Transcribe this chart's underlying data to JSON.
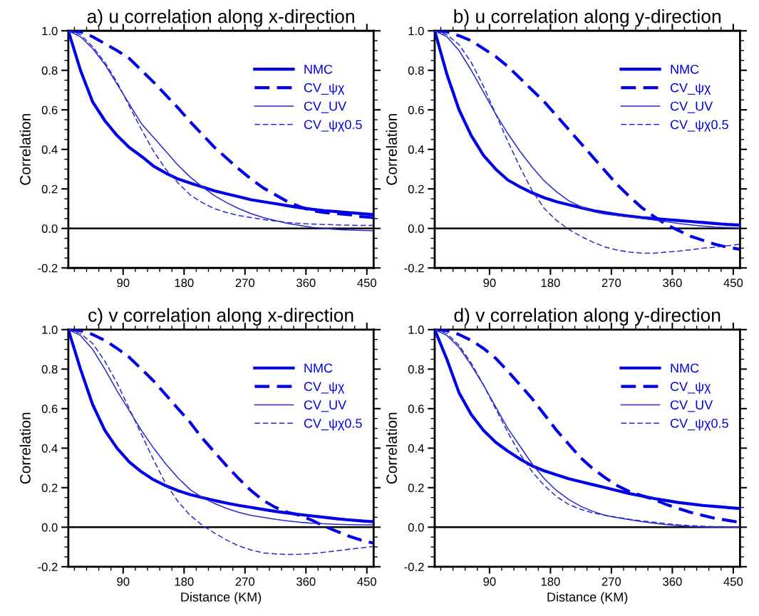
{
  "chart_data": [
    {
      "type": "line",
      "title": "a) u correlation along x-direction",
      "ylabel": "Correlation",
      "x": [
        9,
        27,
        45,
        63,
        81,
        99,
        117,
        135,
        153,
        171,
        189,
        207,
        225,
        243,
        261,
        279,
        297,
        315,
        333,
        351,
        369,
        387,
        405,
        423,
        441,
        459
      ],
      "xlim": [
        9,
        460
      ],
      "xticks": [
        90,
        180,
        270,
        360,
        450
      ],
      "ylim": [
        -0.2,
        1.0
      ],
      "yticks": [
        {
          "value": -0.2,
          "label": "-0.2"
        },
        {
          "value": 0,
          "label": "0.0"
        },
        0.2,
        0.4,
        0.6,
        0.8,
        {
          "value": 1,
          "label": "1.0"
        }
      ],
      "legend": "top right",
      "grid": false,
      "ref_lines": [
        {
          "axis": "y",
          "value": 0,
          "color": "#000000",
          "line_style": "solid"
        }
      ],
      "series": [
        {
          "name": "NMC",
          "color": "#0000e6",
          "line_style": "solid",
          "values": [
            1.0,
            0.8,
            0.64,
            0.545,
            0.47,
            0.41,
            0.365,
            0.315,
            0.28,
            0.25,
            0.23,
            0.21,
            0.19,
            0.175,
            0.16,
            0.145,
            0.135,
            0.125,
            0.115,
            0.105,
            0.097,
            0.09,
            0.085,
            0.08,
            0.075,
            0.07
          ]
        },
        {
          "name": "CV_ψχ",
          "color": "#0000e6",
          "line_style": "dashed",
          "values": [
            1.0,
            0.995,
            0.97,
            0.935,
            0.9,
            0.86,
            0.8,
            0.74,
            0.675,
            0.61,
            0.54,
            0.475,
            0.41,
            0.355,
            0.3,
            0.25,
            0.205,
            0.17,
            0.135,
            0.11,
            0.09,
            0.08,
            0.075,
            0.07,
            0.06,
            0.055
          ]
        },
        {
          "name": "CV_UV",
          "color": "#2a2ad0",
          "line_style": "solid",
          "values": [
            1.0,
            0.97,
            0.91,
            0.83,
            0.73,
            0.63,
            0.53,
            0.46,
            0.39,
            0.32,
            0.26,
            0.21,
            0.165,
            0.13,
            0.1,
            0.075,
            0.055,
            0.04,
            0.025,
            0.015,
            0.005,
            0.0,
            -0.005,
            -0.008,
            -0.01,
            -0.012
          ]
        },
        {
          "name": "CV_ψχ0.5",
          "color": "#2a2ad0",
          "line_style": "dashed",
          "values": [
            1.0,
            0.98,
            0.92,
            0.84,
            0.74,
            0.62,
            0.5,
            0.39,
            0.3,
            0.23,
            0.17,
            0.13,
            0.1,
            0.08,
            0.065,
            0.055,
            0.045,
            0.037,
            0.03,
            0.025,
            0.022,
            0.02,
            0.018,
            0.016,
            0.015,
            0.015
          ]
        }
      ]
    },
    {
      "type": "line",
      "title": "b) u correlation along y-direction",
      "ylabel": "Correlation",
      "x": [
        9,
        27,
        45,
        63,
        81,
        99,
        117,
        135,
        153,
        171,
        189,
        207,
        225,
        243,
        261,
        279,
        297,
        315,
        333,
        351,
        369,
        387,
        405,
        423,
        441,
        459
      ],
      "xlim": [
        9,
        460
      ],
      "xticks": [
        90,
        180,
        270,
        360,
        450
      ],
      "ylim": [
        -0.2,
        1.0
      ],
      "yticks": [
        {
          "value": -0.2,
          "label": "-0.2"
        },
        {
          "value": 0,
          "label": "0.0"
        },
        0.2,
        0.4,
        0.6,
        0.8,
        {
          "value": 1,
          "label": "1.0"
        }
      ],
      "legend": "top right",
      "grid": false,
      "ref_lines": [
        {
          "axis": "y",
          "value": 0,
          "color": "#000000",
          "line_style": "solid"
        }
      ],
      "series": [
        {
          "name": "NMC",
          "color": "#0000e6",
          "line_style": "solid",
          "values": [
            1.0,
            0.78,
            0.6,
            0.47,
            0.37,
            0.3,
            0.245,
            0.21,
            0.18,
            0.155,
            0.135,
            0.12,
            0.105,
            0.09,
            0.08,
            0.07,
            0.062,
            0.055,
            0.05,
            0.045,
            0.04,
            0.035,
            0.03,
            0.025,
            0.02,
            0.017
          ]
        },
        {
          "name": "CV_ψχ",
          "color": "#0000e6",
          "line_style": "dashed",
          "values": [
            1.0,
            0.995,
            0.975,
            0.95,
            0.91,
            0.87,
            0.82,
            0.76,
            0.7,
            0.64,
            0.57,
            0.5,
            0.43,
            0.36,
            0.29,
            0.22,
            0.16,
            0.105,
            0.06,
            0.02,
            -0.01,
            -0.04,
            -0.06,
            -0.08,
            -0.095,
            -0.105
          ]
        },
        {
          "name": "CV_UV",
          "color": "#2a2ad0",
          "line_style": "solid",
          "values": [
            1.0,
            0.97,
            0.9,
            0.8,
            0.69,
            0.58,
            0.48,
            0.39,
            0.31,
            0.24,
            0.185,
            0.14,
            0.11,
            0.085,
            0.072,
            0.065,
            0.058,
            0.05,
            0.042,
            0.034,
            0.025,
            0.018,
            0.012,
            0.007,
            0.004,
            0.002
          ]
        },
        {
          "name": "CV_ψχ0.5",
          "color": "#2a2ad0",
          "line_style": "dashed",
          "values": [
            1.0,
            0.98,
            0.93,
            0.84,
            0.72,
            0.58,
            0.44,
            0.31,
            0.19,
            0.1,
            0.04,
            -0.005,
            -0.04,
            -0.07,
            -0.095,
            -0.11,
            -0.12,
            -0.125,
            -0.125,
            -0.12,
            -0.115,
            -0.108,
            -0.1,
            -0.095,
            -0.088,
            -0.08
          ]
        }
      ]
    },
    {
      "type": "line",
      "title": "c) v correlation along x-direction",
      "ylabel": "Correlation",
      "xlabel": "Distance (KM)",
      "x": [
        9,
        27,
        45,
        63,
        81,
        99,
        117,
        135,
        153,
        171,
        189,
        207,
        225,
        243,
        261,
        279,
        297,
        315,
        333,
        351,
        369,
        387,
        405,
        423,
        441,
        459
      ],
      "xlim": [
        9,
        460
      ],
      "xticks": [
        90,
        180,
        270,
        360,
        450
      ],
      "ylim": [
        -0.2,
        1.0
      ],
      "yticks": [
        {
          "value": -0.2,
          "label": "-0.2"
        },
        {
          "value": 0,
          "label": "0.0"
        },
        0.2,
        0.4,
        0.6,
        0.8,
        {
          "value": 1,
          "label": "1.0"
        }
      ],
      "legend": "top right",
      "grid": false,
      "ref_lines": [
        {
          "axis": "y",
          "value": 0,
          "color": "#000000",
          "line_style": "solid"
        }
      ],
      "series": [
        {
          "name": "NMC",
          "color": "#0000e6",
          "line_style": "solid",
          "values": [
            1.0,
            0.8,
            0.62,
            0.49,
            0.4,
            0.33,
            0.28,
            0.24,
            0.21,
            0.185,
            0.165,
            0.15,
            0.135,
            0.122,
            0.11,
            0.1,
            0.09,
            0.08,
            0.072,
            0.064,
            0.057,
            0.05,
            0.043,
            0.037,
            0.032,
            0.028
          ]
        },
        {
          "name": "CV_ψχ",
          "color": "#0000e6",
          "line_style": "dashed",
          "values": [
            1.0,
            0.995,
            0.975,
            0.945,
            0.905,
            0.86,
            0.8,
            0.74,
            0.67,
            0.6,
            0.53,
            0.45,
            0.38,
            0.31,
            0.245,
            0.185,
            0.135,
            0.1,
            0.075,
            0.06,
            0.035,
            0.005,
            -0.02,
            -0.045,
            -0.065,
            -0.08
          ]
        },
        {
          "name": "CV_UV",
          "color": "#2a2ad0",
          "line_style": "solid",
          "values": [
            1.0,
            0.97,
            0.9,
            0.8,
            0.69,
            0.59,
            0.49,
            0.4,
            0.32,
            0.25,
            0.19,
            0.15,
            0.12,
            0.095,
            0.075,
            0.06,
            0.05,
            0.04,
            0.032,
            0.025,
            0.02,
            0.017,
            0.015,
            0.013,
            0.012,
            0.012
          ]
        },
        {
          "name": "CV_ψχ0.5",
          "color": "#2a2ad0",
          "line_style": "dashed",
          "values": [
            1.0,
            0.98,
            0.93,
            0.84,
            0.73,
            0.6,
            0.47,
            0.34,
            0.22,
            0.13,
            0.06,
            0.01,
            -0.03,
            -0.065,
            -0.095,
            -0.115,
            -0.13,
            -0.135,
            -0.138,
            -0.137,
            -0.133,
            -0.127,
            -0.12,
            -0.112,
            -0.105,
            -0.098
          ]
        }
      ]
    },
    {
      "type": "line",
      "title": "d) v correlation along y-direction",
      "ylabel": "Correlation",
      "xlabel": "Distance (KM)",
      "x": [
        9,
        27,
        45,
        63,
        81,
        99,
        117,
        135,
        153,
        171,
        189,
        207,
        225,
        243,
        261,
        279,
        297,
        315,
        333,
        351,
        369,
        387,
        405,
        423,
        441,
        459
      ],
      "xlim": [
        9,
        460
      ],
      "xticks": [
        90,
        180,
        270,
        360,
        450
      ],
      "ylim": [
        -0.2,
        1.0
      ],
      "yticks": [
        {
          "value": -0.2,
          "label": "-0.2"
        },
        {
          "value": 0,
          "label": "0.0"
        },
        0.2,
        0.4,
        0.6,
        0.8,
        {
          "value": 1,
          "label": "1.0"
        }
      ],
      "legend": "top right",
      "grid": false,
      "ref_lines": [
        {
          "axis": "y",
          "value": 0,
          "color": "#000000",
          "line_style": "solid"
        }
      ],
      "series": [
        {
          "name": "NMC",
          "color": "#0000e6",
          "line_style": "solid",
          "values": [
            1.0,
            0.85,
            0.68,
            0.57,
            0.49,
            0.43,
            0.385,
            0.345,
            0.31,
            0.285,
            0.265,
            0.245,
            0.23,
            0.215,
            0.2,
            0.185,
            0.17,
            0.158,
            0.145,
            0.135,
            0.125,
            0.118,
            0.11,
            0.105,
            0.1,
            0.095
          ]
        },
        {
          "name": "CV_ψχ",
          "color": "#0000e6",
          "line_style": "dashed",
          "values": [
            1.0,
            0.995,
            0.975,
            0.945,
            0.905,
            0.855,
            0.79,
            0.72,
            0.65,
            0.57,
            0.49,
            0.42,
            0.35,
            0.295,
            0.25,
            0.21,
            0.18,
            0.16,
            0.14,
            0.115,
            0.095,
            0.075,
            0.06,
            0.045,
            0.035,
            0.025
          ]
        },
        {
          "name": "CV_UV",
          "color": "#2a2ad0",
          "line_style": "solid",
          "values": [
            1.0,
            0.97,
            0.91,
            0.82,
            0.72,
            0.61,
            0.5,
            0.41,
            0.32,
            0.245,
            0.185,
            0.14,
            0.105,
            0.08,
            0.06,
            0.048,
            0.038,
            0.028,
            0.02,
            0.013,
            0.008,
            0.004,
            0.002,
            0.001,
            0.0,
            0.0
          ]
        },
        {
          "name": "CV_ψχ0.5",
          "color": "#2a2ad0",
          "line_style": "dashed",
          "values": [
            1.0,
            0.98,
            0.92,
            0.83,
            0.72,
            0.6,
            0.48,
            0.37,
            0.28,
            0.21,
            0.155,
            0.115,
            0.09,
            0.072,
            0.06,
            0.05,
            0.04,
            0.032,
            0.025,
            0.018,
            0.012,
            0.008,
            0.005,
            0.003,
            0.002,
            0.001
          ]
        }
      ]
    }
  ]
}
